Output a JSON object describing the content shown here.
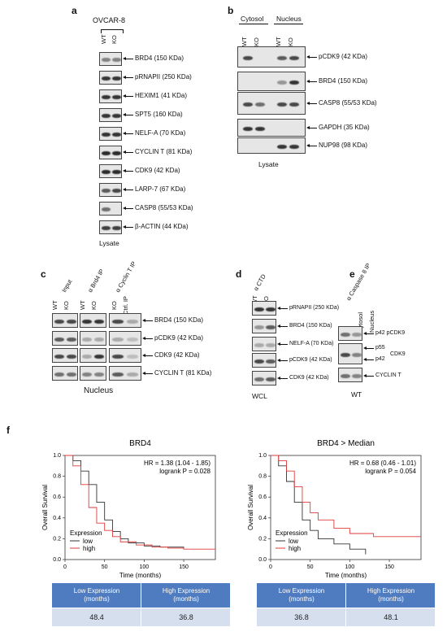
{
  "panels": [
    "a",
    "b",
    "c",
    "d",
    "e",
    "f"
  ],
  "a": {
    "cell_line": "OVCAR-8",
    "lanes": [
      "WT",
      "KO"
    ],
    "bands": [
      "BRD4 (150 KDa)",
      "pRNAPII (250 KDa)",
      "HEXIM1 (41 KDa)",
      "SPT5 (160 KDa)",
      "NELF-A (70 KDa)",
      "CYCLIN T (81 KDa)",
      "CDK9 (42 KDa)",
      "LARP-7 (67 KDa)",
      "CASP8 (55/53 KDa)",
      "β-ACTIN (44 KDa)"
    ],
    "footer": "Lysate"
  },
  "b": {
    "groups": [
      "Cytosol",
      "Nucleus"
    ],
    "lanes": [
      "WT",
      "KO",
      "WT",
      "KO"
    ],
    "bands": [
      "pCDK9 (42 KDa)",
      "BRD4 (150 KDa)",
      "CASP8 (55/53 KDa)",
      "GAPDH (35 KDa)",
      "NUP98 (98 KDa)"
    ],
    "footer": "Lysate"
  },
  "c": {
    "groups": [
      "Input",
      "α Brd4 IP",
      "α Cyclin T IP"
    ],
    "lanes": [
      "WT",
      "KO",
      "WT",
      "KO",
      "KO",
      "Ctrl. IP"
    ],
    "bands": [
      "BRD4 (150 KDa)",
      "pCDK9 (42 KDa)",
      "CDK9 (42 KDa)",
      "CYCLIN T (81 KDa)"
    ],
    "footer": "Nucleus"
  },
  "d": {
    "group": "α CTD",
    "lanes": [
      "WT",
      "KO"
    ],
    "bands": [
      "pRNAPII (250 KDa)",
      "BRD4 (150 KDa)",
      "NELF-A (70 KDa)",
      "pCDK9 (42 KDa)",
      "CDK9 (42 KDa)"
    ],
    "footer": "WCL"
  },
  "e": {
    "group": "α Caspase 8 IP",
    "lanes": [
      "Cytosol",
      "Nucleus"
    ],
    "labels": {
      "p42pcdk9": "p42 pCDK9",
      "p55": "p55",
      "p42": "p42",
      "cdk9": "CDK9",
      "cyclin": "CYCLIN T"
    },
    "footer": "WT"
  },
  "f": {
    "plots": [
      {
        "title": "BRD4",
        "hr": "HR = 1.38 (1.04 - 1.85)",
        "logrank": "logrank P = 0.028"
      },
      {
        "title": "BRD4 > Median",
        "hr": "HR = 0.68 (0.46 - 1.01)",
        "logrank": "logrank P = 0.054"
      }
    ],
    "ylabel": "Overall Survival",
    "xlabel": "Time (months)",
    "legend_title": "Expression",
    "legend": [
      "low",
      "high"
    ],
    "yticks": [
      "0.0",
      "0.2",
      "0.4",
      "0.6",
      "0.8",
      "1.0"
    ],
    "xticks": [
      [
        "0",
        "50",
        "100",
        "150"
      ],
      [
        "0",
        "50",
        "100",
        "150"
      ]
    ],
    "tables": [
      {
        "low_head": "Low Expression (months)",
        "high_head": "High Expression (months)",
        "low": "48.4",
        "high": "36.8"
      },
      {
        "low_head": "Low Expression (months)",
        "high_head": "High Expression (months)",
        "low": "36.8",
        "high": "48.1"
      }
    ],
    "colors": {
      "low": "#333333",
      "high": "#e03a3a",
      "table_head": "#4f7cc0",
      "table_body": "#d6dfee"
    }
  },
  "chart_data": [
    {
      "type": "line",
      "title": "BRD4",
      "xlabel": "Time (months)",
      "ylabel": "Overall Survival",
      "xlim": [
        0,
        190
      ],
      "ylim": [
        0,
        1
      ],
      "series": [
        {
          "name": "low",
          "x": [
            0,
            10,
            20,
            30,
            40,
            50,
            60,
            70,
            80,
            100,
            120,
            150
          ],
          "y": [
            1.0,
            0.95,
            0.85,
            0.72,
            0.55,
            0.38,
            0.27,
            0.2,
            0.16,
            0.13,
            0.12,
            0.1
          ]
        },
        {
          "name": "high",
          "x": [
            0,
            10,
            20,
            30,
            40,
            50,
            60,
            70,
            90,
            110,
            130,
            150,
            190
          ],
          "y": [
            1.0,
            0.9,
            0.72,
            0.5,
            0.35,
            0.28,
            0.22,
            0.17,
            0.14,
            0.12,
            0.11,
            0.1,
            0.1
          ]
        }
      ]
    },
    {
      "type": "line",
      "title": "BRD4 > Median",
      "xlabel": "Time (months)",
      "ylabel": "Overall Survival",
      "xlim": [
        0,
        190
      ],
      "ylim": [
        0,
        1
      ],
      "series": [
        {
          "name": "low",
          "x": [
            0,
            10,
            20,
            30,
            40,
            50,
            60,
            80,
            100,
            120
          ],
          "y": [
            1.0,
            0.9,
            0.75,
            0.55,
            0.38,
            0.28,
            0.2,
            0.15,
            0.1,
            0.05
          ]
        },
        {
          "name": "high",
          "x": [
            0,
            10,
            20,
            30,
            40,
            50,
            60,
            80,
            100,
            130,
            190
          ],
          "y": [
            1.0,
            0.95,
            0.85,
            0.7,
            0.55,
            0.45,
            0.38,
            0.3,
            0.25,
            0.22,
            0.22
          ]
        }
      ]
    }
  ]
}
